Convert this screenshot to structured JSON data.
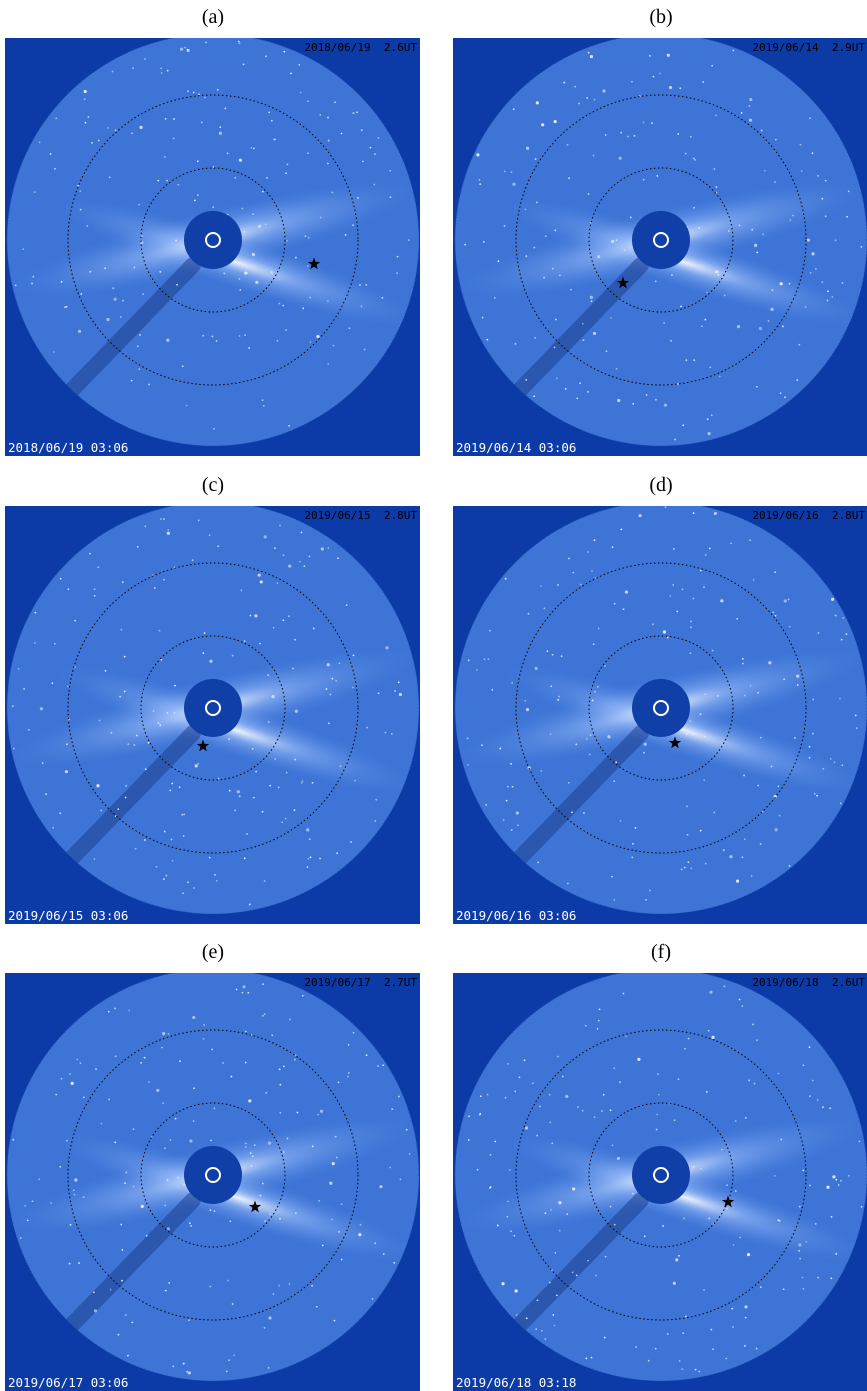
{
  "panels": [
    {
      "label": "(a)",
      "top_right": "2018/06/19  2.6UT",
      "timestamp": "2018/06/19 03:06"
    },
    {
      "label": "(b)",
      "top_right": "2019/06/14  2.9UT",
      "timestamp": "2019/06/14 03:06"
    },
    {
      "label": "(c)",
      "top_right": "2019/06/15  2.8UT",
      "timestamp": "2019/06/15 03:06"
    },
    {
      "label": "(d)",
      "top_right": "2019/06/16  2.8UT",
      "timestamp": "2019/06/16 03:06"
    },
    {
      "label": "(e)",
      "top_right": "2019/06/17  2.7UT",
      "timestamp": "2019/06/17 03:06"
    },
    {
      "label": "(f)",
      "top_right": "2019/06/18  2.6UT",
      "timestamp": "2019/06/18 03:18"
    }
  ]
}
